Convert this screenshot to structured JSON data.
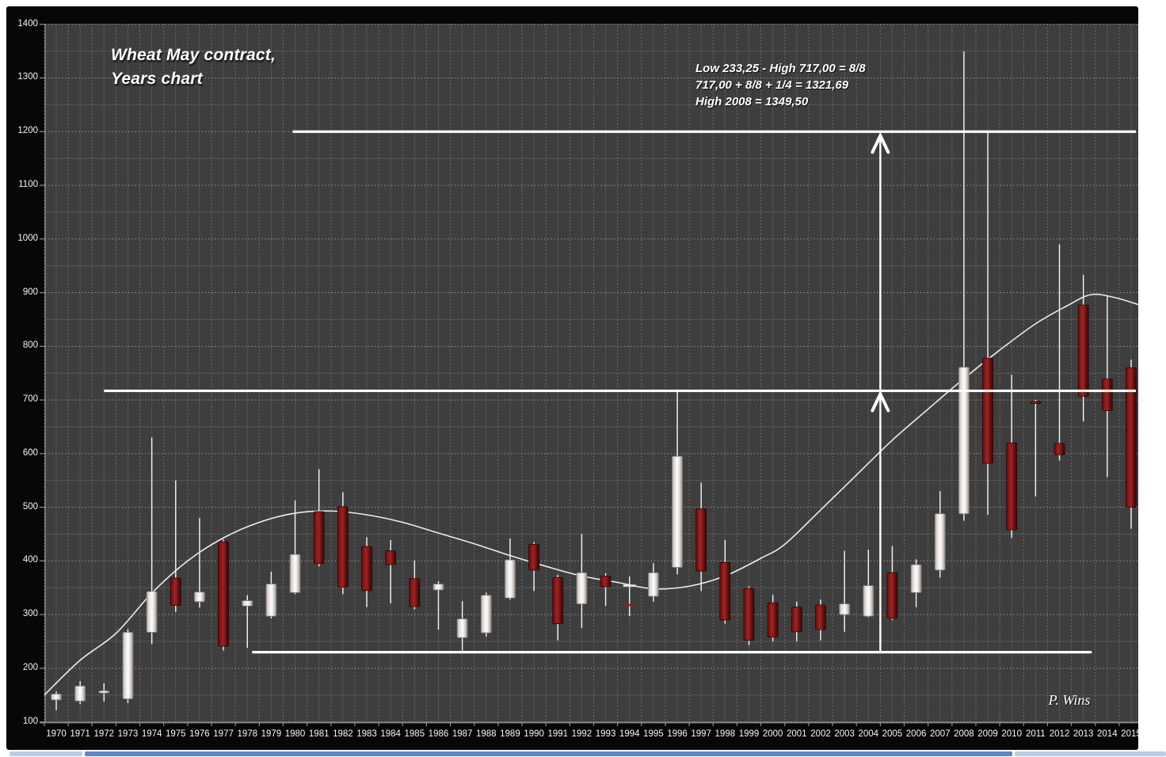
{
  "chrome": {
    "scrollbar_left_color": "#b9cde6",
    "scrollbar_mid_color": "#5c87c5",
    "scrollbar_right_color": "#b9cde6"
  },
  "chart_data": {
    "type": "candlestick",
    "title_line1": "Wheat May contract,",
    "title_line2": "Years chart",
    "signature": "P. Wins",
    "notes": [
      "Low 233,25 - High 717,00 = 8/8",
      "717,00 + 8/8 + 1/4 = 1321,69",
      "High 2008 = 1349,50"
    ],
    "y_axis": {
      "min": 100,
      "max": 1400,
      "step": 100,
      "labels": [
        100,
        200,
        300,
        400,
        500,
        600,
        700,
        800,
        900,
        1000,
        1100,
        1200,
        1300,
        1400
      ]
    },
    "x_axis": {
      "years": [
        1970,
        1971,
        1972,
        1973,
        1974,
        1975,
        1976,
        1977,
        1978,
        1979,
        1980,
        1981,
        1982,
        1983,
        1984,
        1985,
        1986,
        1987,
        1988,
        1989,
        1990,
        1991,
        1992,
        1993,
        1994,
        1995,
        1996,
        1997,
        1998,
        1999,
        2000,
        2001,
        2002,
        2003,
        2004,
        2005,
        2006,
        2007,
        2008,
        2009,
        2010,
        2011,
        2012,
        2013,
        2014,
        2015
      ]
    },
    "colors": {
      "plot_bg": "#3e3e3e",
      "outer_bg": "#070707",
      "up_body": "#efe9e6",
      "down_body": "#7c1616",
      "wick": "#eeeeee",
      "ref_line": "#ffffff",
      "curve": "#f5f5f5",
      "grid_major": "#a3a3a3",
      "grid_minor": "#585858",
      "axis": "#8f8f8f"
    },
    "ohlc": [
      {
        "year": 1970,
        "open": 141,
        "high": 157,
        "low": 122,
        "close": 152,
        "dir": "up"
      },
      {
        "year": 1971,
        "open": 139,
        "high": 176,
        "low": 133,
        "close": 167,
        "dir": "up"
      },
      {
        "year": 1972,
        "open": 154,
        "high": 172,
        "low": 138,
        "close": 158,
        "dir": "up"
      },
      {
        "year": 1973,
        "open": 143,
        "high": 273,
        "low": 135,
        "close": 267,
        "dir": "up"
      },
      {
        "year": 1974,
        "open": 267,
        "high": 630,
        "low": 245,
        "close": 343,
        "dir": "up"
      },
      {
        "year": 1975,
        "open": 368,
        "high": 550,
        "low": 305,
        "close": 317,
        "dir": "down"
      },
      {
        "year": 1976,
        "open": 324,
        "high": 480,
        "low": 313,
        "close": 342,
        "dir": "up"
      },
      {
        "year": 1977,
        "open": 436,
        "high": 440,
        "low": 233.25,
        "close": 241,
        "dir": "down"
      },
      {
        "year": 1978,
        "open": 316,
        "high": 336,
        "low": 238,
        "close": 326,
        "dir": "up"
      },
      {
        "year": 1979,
        "open": 297,
        "high": 380,
        "low": 293,
        "close": 357,
        "dir": "up"
      },
      {
        "year": 1980,
        "open": 341,
        "high": 513,
        "low": 338,
        "close": 412,
        "dir": "up"
      },
      {
        "year": 1981,
        "open": 492,
        "high": 571,
        "low": 390,
        "close": 395,
        "dir": "down"
      },
      {
        "year": 1982,
        "open": 501,
        "high": 528,
        "low": 338,
        "close": 351,
        "dir": "down"
      },
      {
        "year": 1983,
        "open": 427,
        "high": 444,
        "low": 314,
        "close": 345,
        "dir": "down"
      },
      {
        "year": 1984,
        "open": 419,
        "high": 439,
        "low": 321,
        "close": 393,
        "dir": "down"
      },
      {
        "year": 1985,
        "open": 367,
        "high": 401,
        "low": 310,
        "close": 315,
        "dir": "down"
      },
      {
        "year": 1986,
        "open": 346,
        "high": 362,
        "low": 272,
        "close": 357,
        "dir": "up"
      },
      {
        "year": 1987,
        "open": 257,
        "high": 325,
        "low": 233,
        "close": 292,
        "dir": "up"
      },
      {
        "year": 1988,
        "open": 266,
        "high": 341,
        "low": 259,
        "close": 336,
        "dir": "up"
      },
      {
        "year": 1989,
        "open": 331,
        "high": 442,
        "low": 328,
        "close": 402,
        "dir": "up"
      },
      {
        "year": 1990,
        "open": 431,
        "high": 435,
        "low": 344,
        "close": 383,
        "dir": "down"
      },
      {
        "year": 1991,
        "open": 369,
        "high": 374,
        "low": 252,
        "close": 283,
        "dir": "down"
      },
      {
        "year": 1992,
        "open": 320,
        "high": 450,
        "low": 275,
        "close": 378,
        "dir": "up"
      },
      {
        "year": 1993,
        "open": 372,
        "high": 377,
        "low": 316,
        "close": 352,
        "dir": "down"
      },
      {
        "year": 1994,
        "open": 354,
        "high": 371,
        "low": 297,
        "close": 318,
        "dir": "down",
        "style": "bar"
      },
      {
        "year": 1995,
        "open": 334,
        "high": 396,
        "low": 324,
        "close": 378,
        "dir": "up"
      },
      {
        "year": 1996,
        "open": 388,
        "high": 717,
        "low": 375,
        "close": 595,
        "dir": "up"
      },
      {
        "year": 1997,
        "open": 497,
        "high": 546,
        "low": 344,
        "close": 381,
        "dir": "down"
      },
      {
        "year": 1998,
        "open": 397,
        "high": 439,
        "low": 283,
        "close": 290,
        "dir": "down"
      },
      {
        "year": 1999,
        "open": 349,
        "high": 353,
        "low": 243,
        "close": 252,
        "dir": "down"
      },
      {
        "year": 2000,
        "open": 322,
        "high": 337,
        "low": 250,
        "close": 258,
        "dir": "down"
      },
      {
        "year": 2001,
        "open": 314,
        "high": 324,
        "low": 250,
        "close": 268,
        "dir": "down"
      },
      {
        "year": 2002,
        "open": 318,
        "high": 328,
        "low": 252,
        "close": 272,
        "dir": "down"
      },
      {
        "year": 2003,
        "open": 300,
        "high": 419,
        "low": 268,
        "close": 320,
        "dir": "up"
      },
      {
        "year": 2004,
        "open": 297,
        "high": 421,
        "low": 295,
        "close": 354,
        "dir": "up"
      },
      {
        "year": 2005,
        "open": 378,
        "high": 428,
        "low": 290,
        "close": 293,
        "dir": "down"
      },
      {
        "year": 2006,
        "open": 341,
        "high": 403,
        "low": 314,
        "close": 393,
        "dir": "up"
      },
      {
        "year": 2007,
        "open": 383,
        "high": 530,
        "low": 369,
        "close": 488,
        "dir": "up"
      },
      {
        "year": 2008,
        "open": 488,
        "high": 1349.5,
        "low": 475,
        "close": 761,
        "dir": "up"
      },
      {
        "year": 2009,
        "open": 778,
        "high": 1200,
        "low": 486,
        "close": 582,
        "dir": "down"
      },
      {
        "year": 2010,
        "open": 620,
        "high": 747,
        "low": 443,
        "close": 458,
        "dir": "down"
      },
      {
        "year": 2011,
        "open": 697,
        "high": 700,
        "low": 520,
        "close": 694,
        "dir": "down"
      },
      {
        "year": 2012,
        "open": 619,
        "high": 990,
        "low": 587,
        "close": 598,
        "dir": "down"
      },
      {
        "year": 2013,
        "open": 877,
        "high": 933,
        "low": 660,
        "close": 707,
        "dir": "down"
      },
      {
        "year": 2014,
        "open": 739,
        "high": 895,
        "low": 556,
        "close": 680,
        "dir": "down"
      },
      {
        "year": 2015,
        "open": 760,
        "high": 775,
        "low": 460,
        "close": 500,
        "dir": "down"
      }
    ],
    "trend_curve": [
      [
        1969.5,
        150
      ],
      [
        1971,
        215
      ],
      [
        1972.5,
        265
      ],
      [
        1974,
        340
      ],
      [
        1975.5,
        400
      ],
      [
        1977,
        443
      ],
      [
        1978.5,
        472
      ],
      [
        1980,
        489
      ],
      [
        1981.5,
        493
      ],
      [
        1983,
        486
      ],
      [
        1984.5,
        472
      ],
      [
        1986,
        452
      ],
      [
        1987.5,
        432
      ],
      [
        1989,
        410
      ],
      [
        1990.5,
        390
      ],
      [
        1992,
        372
      ],
      [
        1993.5,
        360
      ],
      [
        1995,
        348
      ],
      [
        1996.5,
        353
      ],
      [
        1998,
        372
      ],
      [
        1999.5,
        405
      ],
      [
        2000.5,
        431
      ],
      [
        2002,
        495
      ],
      [
        2003.5,
        560
      ],
      [
        2005,
        625
      ],
      [
        2006.5,
        683
      ],
      [
        2008,
        740
      ],
      [
        2009.5,
        793
      ],
      [
        2011,
        842
      ],
      [
        2012.3,
        875
      ],
      [
        2013.3,
        896
      ],
      [
        2014.3,
        891
      ],
      [
        2015.7,
        872
      ]
    ],
    "ref_lines": [
      {
        "value": 1200,
        "from_year": 1979.9,
        "to_year": 2015.2
      },
      {
        "value": 717,
        "from_year": 1972.0,
        "to_year": 2015.2
      },
      {
        "value": 230,
        "from_year": 1978.2,
        "to_year": 2013.35
      }
    ],
    "arrow": {
      "at_year": 2004.5,
      "from_value": 230,
      "to_value": 1200,
      "mid_chevron_value": 717
    }
  }
}
